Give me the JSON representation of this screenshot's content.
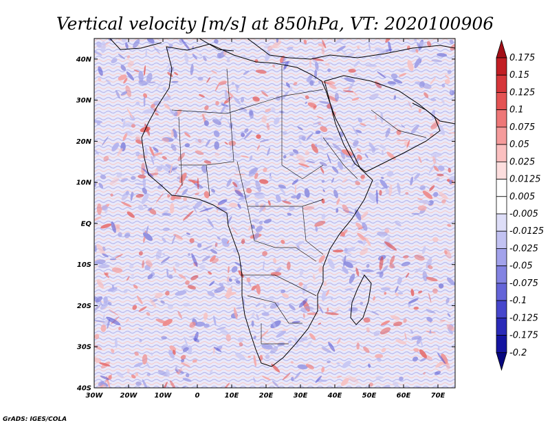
{
  "chart_data": {
    "type": "heatmap",
    "title": "Vertical velocity [m/s] at 850hPa, VT: 2020100906",
    "variable": "Vertical velocity",
    "units": "m/s",
    "level": "850hPa",
    "valid_time": "2020100906",
    "xlabel": "",
    "ylabel": "",
    "xlim": [
      -30,
      75
    ],
    "ylim": [
      -40,
      45
    ],
    "x_ticks": [
      -30,
      -20,
      -10,
      0,
      10,
      20,
      30,
      40,
      50,
      60,
      70
    ],
    "x_tick_labels": [
      "30W",
      "20W",
      "10W",
      "0",
      "10E",
      "20E",
      "30E",
      "40E",
      "50E",
      "60E",
      "70E"
    ],
    "y_ticks": [
      -40,
      -30,
      -20,
      -10,
      0,
      10,
      20,
      30,
      40
    ],
    "y_tick_labels": [
      "40S",
      "30S",
      "20S",
      "10S",
      "EQ",
      "10N",
      "20N",
      "30N",
      "40N"
    ],
    "colorbar": {
      "levels": [
        "0.175",
        "0.15",
        "0.125",
        "0.1",
        "0.075",
        "0.05",
        "0.025",
        "0.0125",
        "0.005",
        "-0.005",
        "-0.0125",
        "-0.025",
        "-0.05",
        "-0.075",
        "-0.1",
        "-0.125",
        "-0.175",
        "-0.2"
      ],
      "colors": [
        "#a30f17",
        "#c21e24",
        "#d6363a",
        "#e45353",
        "#ee7777",
        "#f59b9b",
        "#fbc0c0",
        "#fddede",
        "#ffffff",
        "#ffffff",
        "#dedef8",
        "#c2c2f2",
        "#a2a2eb",
        "#8383e2",
        "#6464d8",
        "#4646cc",
        "#2a2ab8",
        "#1414a0",
        "#07077e"
      ]
    },
    "grid": false
  },
  "credit": "GrADS: IGES/COLA",
  "colors": {
    "positive": "#d93a3a",
    "negative": "#3a3ad0",
    "background": "#eeeefb",
    "frame": "#000000"
  }
}
